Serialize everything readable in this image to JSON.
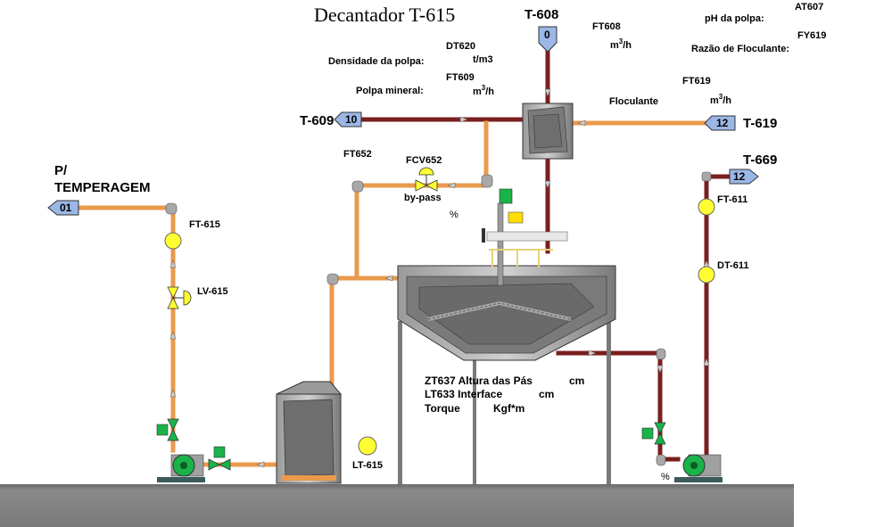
{
  "title": "Decantador T-615",
  "colors": {
    "slurry_pipe": "#ea9a4d",
    "flocculant_pipe": "#7a1f1f",
    "equipment_gray": "#8a8a8a",
    "floor": "#808080",
    "pump_green": "#19b34a",
    "instrument_yellow": "#ffff33",
    "arrow_blue": "#9ab7e6"
  },
  "tanks": {
    "t608": {
      "tag": "T-608",
      "badge": "0"
    },
    "t609": {
      "tag": "T-609",
      "badge": "10"
    },
    "t619": {
      "tag": "T-619",
      "badge": "12"
    },
    "t669": {
      "tag": "T-669",
      "badge": "12"
    },
    "temperagem": {
      "line1": "P/",
      "line2": "TEMPERAGEM",
      "badge": "01"
    }
  },
  "instruments": {
    "ft608": {
      "tag": "FT608",
      "unit": "m",
      "unit_sup": "3",
      "unit_suffix": "/h"
    },
    "dt620": {
      "tag": "DT620",
      "label": "Densidade da polpa:",
      "unit": "t/m3"
    },
    "ft609": {
      "tag": "FT609",
      "label": "Polpa mineral:",
      "unit": "m",
      "unit_sup": "3",
      "unit_suffix": "/h"
    },
    "ft619": {
      "tag": "FT619",
      "label": "Floculante",
      "unit": "m",
      "unit_sup": "3",
      "unit_suffix": "/h"
    },
    "at607": {
      "tag": "AT607",
      "label": "pH da polpa:"
    },
    "fy619": {
      "tag": "FY619",
      "label": "Razão de Floculante:"
    },
    "ft652": {
      "tag": "FT652"
    },
    "fcv652": {
      "tag": "FCV652",
      "bypass": "by-pass",
      "unit": "%"
    },
    "ft615": {
      "tag": "FT-615"
    },
    "lv615": {
      "tag": "LV-615"
    },
    "lt615": {
      "tag": "LT-615"
    },
    "ft611": {
      "tag": "FT-611"
    },
    "dt611": {
      "tag": "DT-611"
    },
    "pump_underflow": {
      "unit": "%"
    }
  },
  "readouts": {
    "zt637": {
      "label": "ZT637 Altura das Pás",
      "unit": "cm"
    },
    "lt633": {
      "label": "LT633 Interface",
      "unit": "cm"
    },
    "torque": {
      "label": "Torque",
      "unit": "Kgf*m"
    }
  }
}
